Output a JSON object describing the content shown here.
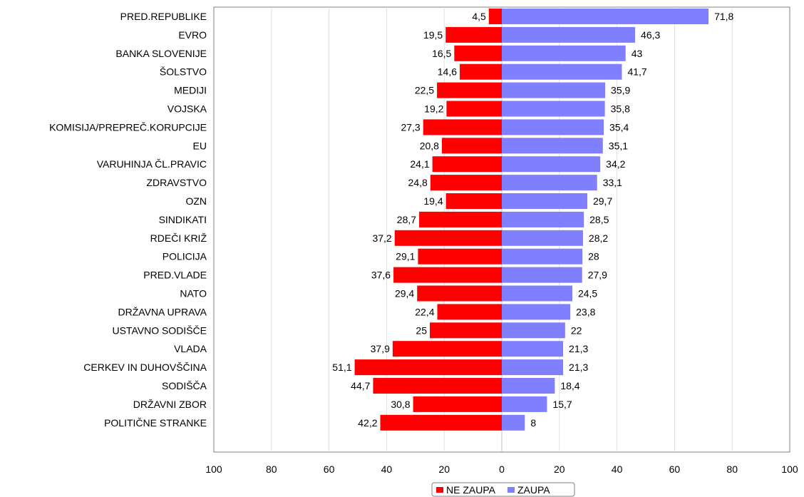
{
  "chart_data": {
    "type": "bar",
    "orientation": "horizontal-diverging",
    "categories": [
      "PRED.REPUBLIKE",
      "EVRO",
      "BANKA SLOVENIJE",
      "ŠOLSTVO",
      "MEDIJI",
      "VOJSKA",
      "KOMISIJA/PREPREČ.KORUPCIJE",
      "EU",
      "VARUHINJA ČL.PRAVIC",
      "ZDRAVSTVO",
      "OZN",
      "SINDIKATI",
      "RDEČI KRIŽ",
      "POLICIJA",
      "PRED.VLADE",
      "NATO",
      "DRŽAVNA UPRAVA",
      "USTAVNO SODIŠČE",
      "VLADA",
      "CERKEV IN DUHOVŠČINA",
      "SODIŠČA",
      "DRŽAVNI ZBOR",
      "POLITIČNE STRANKE"
    ],
    "series": [
      {
        "name": "NE ZAUPA",
        "color": "#ff0000",
        "direction": "left",
        "values": [
          4.5,
          19.5,
          16.5,
          14.6,
          22.5,
          19.2,
          27.3,
          20.8,
          24.1,
          24.8,
          19.4,
          28.7,
          37.2,
          29.1,
          37.6,
          29.4,
          22.4,
          25,
          37.9,
          51.1,
          44.7,
          30.8,
          42.2
        ],
        "value_labels": [
          "4,5",
          "19,5",
          "16,5",
          "14,6",
          "22,5",
          "19,2",
          "27,3",
          "20,8",
          "24,1",
          "24,8",
          "19,4",
          "28,7",
          "37,2",
          "29,1",
          "37,6",
          "29,4",
          "22,4",
          "25",
          "37,9",
          "51,1",
          "44,7",
          "30,8",
          "42,2"
        ]
      },
      {
        "name": "ZAUPA",
        "color": "#8080ff",
        "direction": "right",
        "values": [
          71.8,
          46.3,
          43,
          41.7,
          35.9,
          35.8,
          35.4,
          35.1,
          34.2,
          33.1,
          29.7,
          28.5,
          28.2,
          28,
          27.9,
          24.5,
          23.8,
          22,
          21.3,
          21.3,
          18.4,
          15.7,
          8
        ],
        "value_labels": [
          "71,8",
          "46,3",
          "43",
          "41,7",
          "35,9",
          "35,8",
          "35,4",
          "35,1",
          "34,2",
          "33,1",
          "29,7",
          "28,5",
          "28,2",
          "28",
          "27,9",
          "24,5",
          "23,8",
          "22",
          "21,3",
          "21,3",
          "18,4",
          "15,7",
          "8"
        ]
      }
    ],
    "xlim": [
      -100,
      100
    ],
    "x_ticks": [
      -100,
      -80,
      -60,
      -40,
      -20,
      0,
      20,
      40,
      60,
      80,
      100
    ],
    "x_tick_labels": [
      "100",
      "80",
      "60",
      "40",
      "20",
      "0",
      "20",
      "40",
      "60",
      "80",
      "100"
    ],
    "grid": true,
    "legend": {
      "position": "bottom-center",
      "entries": [
        "NE ZAUPA",
        "ZAUPA"
      ]
    }
  }
}
